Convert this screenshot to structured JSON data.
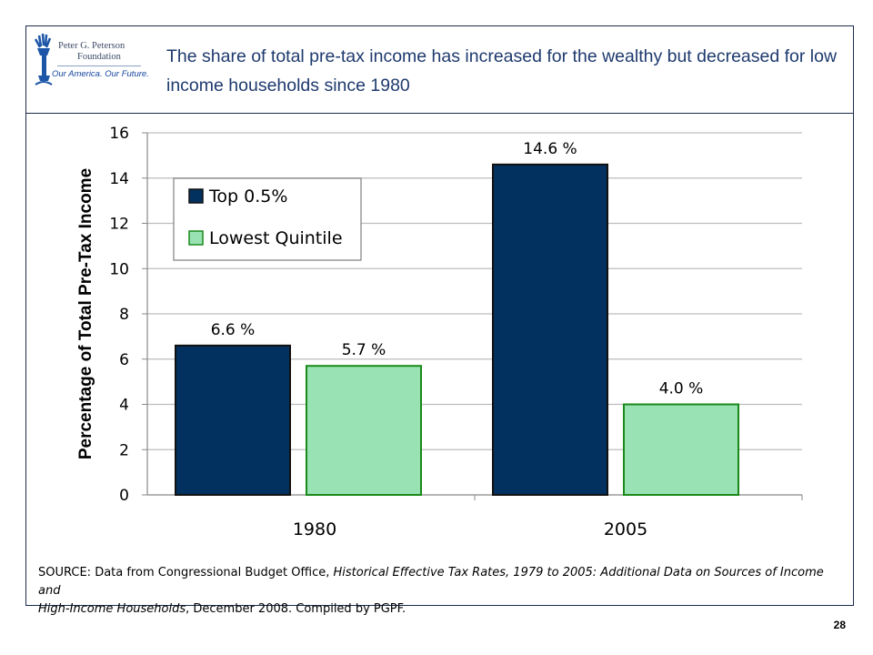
{
  "logo": {
    "name_line1": "Peter G. Peterson",
    "name_line2": "Foundation",
    "tagline": "Our America. Our Future."
  },
  "header": {
    "title": "The share of total pre-tax income has increased for the wealthy but decreased for low income households since 1980"
  },
  "chart_data": {
    "type": "bar",
    "categories": [
      "1980",
      "2005"
    ],
    "series": [
      {
        "name": "Top 0.5%",
        "values": [
          6.6,
          14.6
        ],
        "labels": [
          "6.6 %",
          "14.6 %"
        ],
        "color": "#02305f",
        "border": "#111111"
      },
      {
        "name": "Lowest Quintile",
        "values": [
          5.7,
          4.0
        ],
        "labels": [
          "5.7 %",
          "4.0 %"
        ],
        "color": "#99e2b4",
        "border": "#1a8a1a"
      }
    ],
    "ylabel": "Percentage of Total Pre-Tax Income",
    "xlabel": "",
    "ylim": [
      0,
      16
    ],
    "yticks": [
      0,
      2,
      4,
      6,
      8,
      10,
      12,
      14,
      16
    ],
    "grid": true,
    "legend_position": "top-left"
  },
  "source": {
    "prefix": "SOURCE: Data from Congressional Budget Office, ",
    "title_italic_1": "Historical Effective Tax Rates, 1979 to 2005: Additional Data on Sources of Income and",
    "title_italic_2": "High-Income Households",
    "suffix": ", December 2008. Compiled by PGPF."
  },
  "page_number": "28"
}
